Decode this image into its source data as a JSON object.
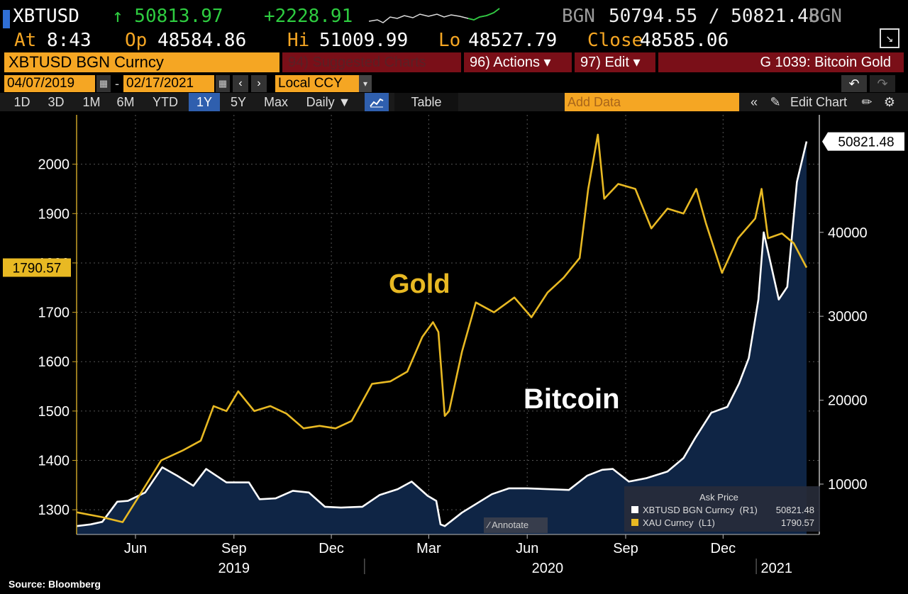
{
  "header": {
    "ticker": "XBTUSD",
    "last": "↑ 50813.97",
    "change": "+2228.91",
    "source": "BGN",
    "bid_ask": "50794.55 / 50821.48",
    "source2": "BGN",
    "at_label": "At",
    "at_value": "8:43",
    "op_label": "Op",
    "op_value": "48584.86",
    "hi_label": "Hi",
    "hi_value": "51009.99",
    "lo_label": "Lo",
    "lo_value": "48527.79",
    "close_label": "Close",
    "close_value": "48585.06"
  },
  "menubar": {
    "security": "XBTUSD BGN Curncy",
    "suggested": "94) Suggested Charts",
    "actions": "96) Actions ▾",
    "edit": "97) Edit ▾",
    "chart_title": "G 1039: Bitcoin Gold"
  },
  "range": {
    "start": "04/07/2019",
    "end": "02/17/2021",
    "currency": "Local CCY",
    "add_data_placeholder": "Add Data"
  },
  "toolbar": {
    "periods": [
      "1D",
      "3D",
      "1M",
      "6M",
      "YTD",
      "1Y",
      "5Y",
      "Max"
    ],
    "selected": "1Y",
    "frequency": "Daily ▼",
    "table": "Table",
    "edit_chart": "Edit Chart"
  },
  "chart_data": {
    "type": "line",
    "x_range": [
      "2019-04-07",
      "2021-02-17"
    ],
    "x_ticks": [
      "Jun",
      "Sep",
      "Dec",
      "Mar",
      "Jun",
      "Sep",
      "Dec"
    ],
    "x_years": [
      "2019",
      "2020",
      "2021"
    ],
    "left_axis": {
      "ticks": [
        1300,
        1400,
        1500,
        1600,
        1700,
        1800,
        1900,
        2000
      ],
      "range": [
        1250,
        2100
      ]
    },
    "right_axis": {
      "ticks": [
        10000,
        20000,
        30000,
        40000
      ],
      "range": [
        4000,
        54000
      ]
    },
    "last_labels": {
      "left": "1790.57",
      "right": "50821.48"
    },
    "annotations": [
      "Gold",
      "Bitcoin"
    ],
    "series": [
      {
        "name": "XAU Curncy (L1)",
        "axis": "left",
        "color": "#e8b923",
        "x": [
          "2019-04-07",
          "2019-05-01",
          "2019-05-20",
          "2019-06-05",
          "2019-06-25",
          "2019-07-15",
          "2019-08-01",
          "2019-08-13",
          "2019-08-25",
          "2019-09-05",
          "2019-09-20",
          "2019-10-05",
          "2019-10-20",
          "2019-11-05",
          "2019-11-20",
          "2019-12-05",
          "2019-12-20",
          "2020-01-08",
          "2020-01-25",
          "2020-02-10",
          "2020-02-24",
          "2020-03-05",
          "2020-03-10",
          "2020-03-16",
          "2020-03-20",
          "2020-04-01",
          "2020-04-14",
          "2020-05-01",
          "2020-05-20",
          "2020-06-05",
          "2020-06-20",
          "2020-07-05",
          "2020-07-20",
          "2020-07-28",
          "2020-08-06",
          "2020-08-12",
          "2020-08-25",
          "2020-09-10",
          "2020-09-25",
          "2020-10-10",
          "2020-10-25",
          "2020-11-06",
          "2020-11-15",
          "2020-11-30",
          "2020-12-15",
          "2020-12-31",
          "2021-01-06",
          "2021-01-12",
          "2021-01-25",
          "2021-02-05",
          "2021-02-17"
        ],
        "y": [
          1295,
          1285,
          1275,
          1330,
          1400,
          1420,
          1440,
          1510,
          1500,
          1540,
          1500,
          1510,
          1495,
          1465,
          1470,
          1465,
          1480,
          1555,
          1560,
          1580,
          1650,
          1680,
          1660,
          1490,
          1500,
          1620,
          1720,
          1700,
          1730,
          1690,
          1740,
          1770,
          1810,
          1950,
          2060,
          1930,
          1960,
          1950,
          1870,
          1910,
          1900,
          1950,
          1880,
          1780,
          1850,
          1890,
          1950,
          1850,
          1860,
          1840,
          1790.57
        ]
      },
      {
        "name": "XBTUSD BGN Curncy (R1)",
        "axis": "right",
        "color": "#ffffff",
        "x": [
          "2019-04-07",
          "2019-04-20",
          "2019-05-01",
          "2019-05-15",
          "2019-05-25",
          "2019-06-10",
          "2019-06-26",
          "2019-07-10",
          "2019-07-25",
          "2019-08-06",
          "2019-08-25",
          "2019-09-15",
          "2019-09-25",
          "2019-10-10",
          "2019-10-26",
          "2019-11-10",
          "2019-11-25",
          "2019-12-10",
          "2019-12-30",
          "2020-01-15",
          "2020-02-01",
          "2020-02-14",
          "2020-02-29",
          "2020-03-08",
          "2020-03-12",
          "2020-03-16",
          "2020-04-01",
          "2020-04-29",
          "2020-05-15",
          "2020-06-01",
          "2020-06-20",
          "2020-07-10",
          "2020-07-27",
          "2020-08-10",
          "2020-08-20",
          "2020-09-04",
          "2020-09-20",
          "2020-10-10",
          "2020-10-25",
          "2020-11-05",
          "2020-11-20",
          "2020-12-05",
          "2020-12-16",
          "2020-12-25",
          "2021-01-03",
          "2021-01-08",
          "2021-01-15",
          "2021-01-22",
          "2021-01-30",
          "2021-02-08",
          "2021-02-17"
        ],
        "y": [
          5000,
          5200,
          5500,
          7900,
          8000,
          9000,
          12000,
          11000,
          9800,
          11800,
          10200,
          10200,
          8200,
          8300,
          9200,
          9000,
          7300,
          7200,
          7300,
          8700,
          9400,
          10300,
          8600,
          8000,
          5200,
          5000,
          6600,
          8800,
          9500,
          9500,
          9400,
          9300,
          11000,
          11700,
          11800,
          10300,
          10700,
          11500,
          13100,
          15500,
          18500,
          19200,
          22000,
          25000,
          32000,
          40000,
          36000,
          32000,
          33500,
          46000,
          50821.48
        ]
      }
    ]
  },
  "legend": {
    "title": "Ask Price",
    "items": [
      {
        "label": "XBTUSD BGN Curncy  (R1)",
        "value": "50821.48",
        "color": "#ffffff"
      },
      {
        "label": "XAU Curncy  (L1)",
        "value": "1790.57",
        "color": "#e8b923"
      }
    ]
  },
  "annotate_label": "Annotate",
  "source_note": "Source: Bloomberg"
}
